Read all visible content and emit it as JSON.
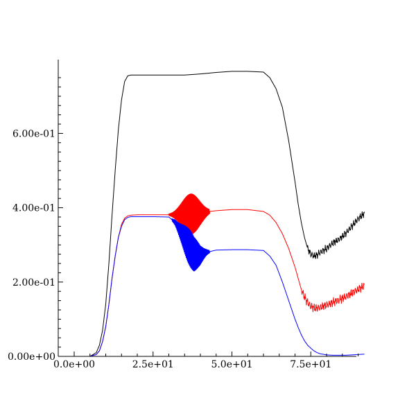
{
  "chart_data": {
    "type": "line",
    "title": "",
    "xlabel": "",
    "ylabel": "",
    "xlim": [
      0,
      94
    ],
    "ylim": [
      0,
      0.8
    ],
    "x_ticks": [
      0,
      25,
      50,
      75
    ],
    "x_tick_labels": [
      "0.0e+00",
      "2.5e+01",
      "5.0e+01",
      "7.5e+01"
    ],
    "y_ticks": [
      0,
      0.2,
      0.4,
      0.6
    ],
    "y_tick_labels": [
      "0.00e+00",
      "2.00e-01",
      "4.00e-01",
      "6.00e-01"
    ],
    "grid": false,
    "legend": "none",
    "series": [
      {
        "color": "#000000",
        "x": [
          0,
          5,
          7,
          8,
          9,
          10,
          11,
          12,
          13,
          14,
          15,
          16,
          17,
          18,
          20,
          25,
          30,
          35,
          40,
          45,
          50,
          55,
          60,
          62,
          64,
          66,
          68,
          70,
          71,
          72,
          73,
          74,
          75,
          76,
          77,
          78,
          80,
          82,
          84,
          86,
          88,
          90,
          92
        ],
        "y": [
          0,
          0.0,
          0.01,
          0.03,
          0.07,
          0.14,
          0.25,
          0.38,
          0.5,
          0.61,
          0.69,
          0.74,
          0.755,
          0.757,
          0.757,
          0.757,
          0.757,
          0.757,
          0.76,
          0.764,
          0.767,
          0.767,
          0.765,
          0.75,
          0.72,
          0.67,
          0.58,
          0.47,
          0.41,
          0.36,
          0.32,
          0.29,
          0.275,
          0.27,
          0.273,
          0.28,
          0.29,
          0.305,
          0.315,
          0.33,
          0.35,
          0.37,
          0.385
        ],
        "noise": [
          [
            74,
            92,
            0.006
          ]
        ]
      },
      {
        "color": "#ff0000",
        "x": [
          0,
          5,
          7,
          8,
          9,
          10,
          11,
          12,
          13,
          14,
          15,
          16,
          17,
          18,
          20,
          25,
          30,
          32,
          35,
          37,
          39,
          41,
          43,
          45,
          50,
          55,
          60,
          62,
          64,
          66,
          68,
          70,
          71,
          72,
          73,
          74,
          75,
          76,
          77,
          78,
          80,
          82,
          84,
          86,
          88,
          90,
          92
        ],
        "y": [
          0,
          0.0,
          0.005,
          0.015,
          0.04,
          0.08,
          0.14,
          0.21,
          0.27,
          0.32,
          0.355,
          0.372,
          0.378,
          0.38,
          0.381,
          0.381,
          0.381,
          0.381,
          0.382,
          0.383,
          0.384,
          0.386,
          0.39,
          0.392,
          0.395,
          0.395,
          0.39,
          0.38,
          0.36,
          0.33,
          0.29,
          0.24,
          0.21,
          0.18,
          0.16,
          0.145,
          0.135,
          0.13,
          0.13,
          0.132,
          0.138,
          0.145,
          0.152,
          0.16,
          0.17,
          0.18,
          0.19
        ],
        "noise": [
          [
            72,
            92,
            0.007
          ]
        ],
        "burst": [
          30,
          43,
          37,
          0.055
        ]
      },
      {
        "color": "#0000ff",
        "x": [
          0,
          5,
          7,
          8,
          9,
          10,
          11,
          12,
          13,
          14,
          15,
          16,
          17,
          18,
          20,
          25,
          30,
          32,
          34,
          36,
          38,
          40,
          42,
          45,
          50,
          55,
          60,
          62,
          64,
          66,
          68,
          70,
          71,
          72,
          73,
          74,
          75,
          76,
          77,
          78,
          80,
          82,
          84,
          86,
          88,
          90,
          92
        ],
        "y": [
          0,
          0.0,
          0.005,
          0.015,
          0.04,
          0.08,
          0.14,
          0.21,
          0.27,
          0.32,
          0.35,
          0.368,
          0.374,
          0.376,
          0.376,
          0.376,
          0.375,
          0.36,
          0.33,
          0.3,
          0.275,
          0.272,
          0.28,
          0.286,
          0.287,
          0.287,
          0.285,
          0.27,
          0.245,
          0.2,
          0.15,
          0.1,
          0.078,
          0.058,
          0.042,
          0.03,
          0.022,
          0.015,
          0.01,
          0.007,
          0.004,
          0.003,
          0.003,
          0.003,
          0.004,
          0.005,
          0.006
        ],
        "burst": [
          31,
          43,
          37,
          0.05
        ]
      }
    ]
  }
}
